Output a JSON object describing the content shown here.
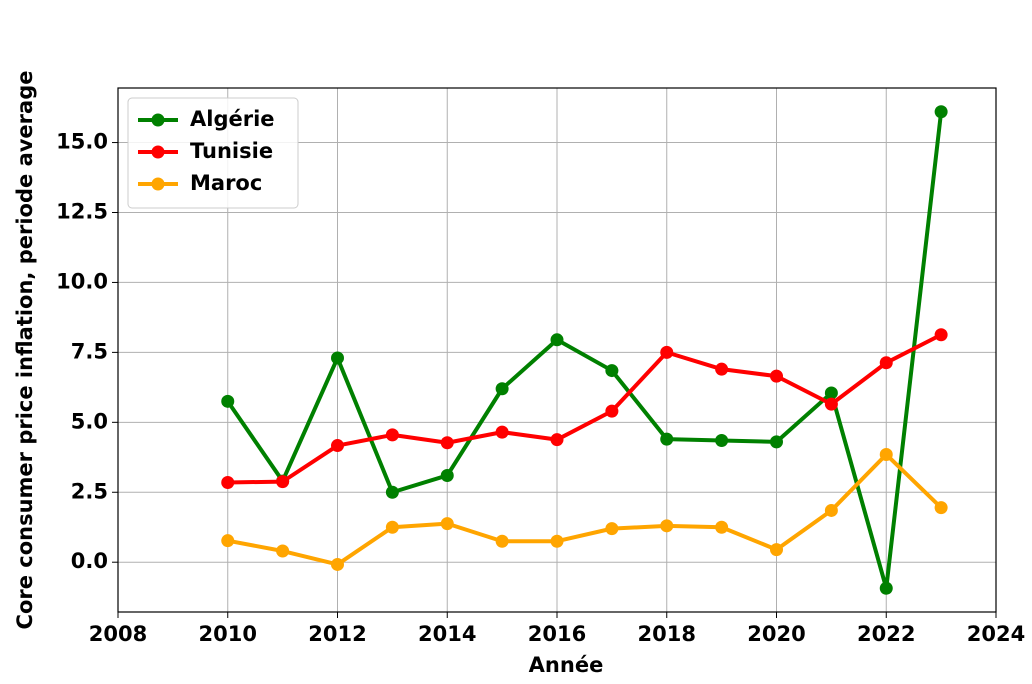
{
  "chart_data": {
    "type": "line",
    "xlabel": "Année",
    "ylabel": "Core consumer price inflation, periode average",
    "x": [
      2010,
      2011,
      2012,
      2013,
      2014,
      2015,
      2016,
      2017,
      2018,
      2019,
      2020,
      2021,
      2022,
      2023
    ],
    "series": [
      {
        "name": "Algérie",
        "color": "#008000",
        "values": [
          5.75,
          2.9,
          7.3,
          2.5,
          3.1,
          6.2,
          7.95,
          6.85,
          4.4,
          4.35,
          4.3,
          6.05,
          -0.93,
          16.1
        ]
      },
      {
        "name": "Tunisie",
        "color": "#ff0000",
        "values": [
          2.85,
          2.88,
          4.17,
          4.55,
          4.27,
          4.65,
          4.38,
          5.4,
          7.5,
          6.9,
          6.65,
          5.65,
          7.13,
          8.13
        ]
      },
      {
        "name": "Maroc",
        "color": "#ffa500",
        "values": [
          0.77,
          0.4,
          -0.08,
          1.25,
          1.38,
          0.75,
          0.75,
          1.2,
          1.3,
          1.25,
          0.45,
          1.85,
          3.85,
          1.95
        ]
      }
    ],
    "xlim": [
      2008,
      2024
    ],
    "xticks": [
      2008,
      2010,
      2012,
      2014,
      2016,
      2018,
      2020,
      2022,
      2024
    ],
    "ylim": [
      -1.78,
      16.95
    ],
    "yticks": [
      {
        "value": 0,
        "label": "0.0"
      },
      2.5,
      {
        "value": 5,
        "label": "5.0"
      },
      7.5,
      {
        "value": 10,
        "label": "10.0"
      },
      12.5,
      {
        "value": 15,
        "label": "15.0"
      }
    ],
    "grid": true,
    "legend": "upper left"
  }
}
